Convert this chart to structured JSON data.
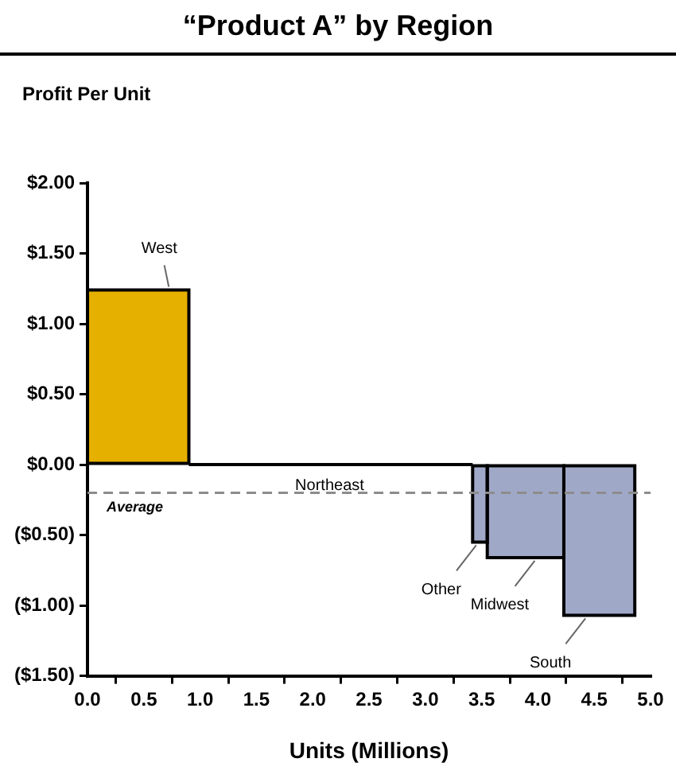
{
  "chart_data": {
    "type": "histogram",
    "title": "“Product A” by Region",
    "ylabel": "Profit Per Unit",
    "xlabel": "Units (Millions)",
    "bins": [
      0,
      0.9,
      3.42,
      3.55,
      4.23,
      4.86
    ],
    "values": [
      1.24,
      0,
      -0.55,
      -0.66,
      -1.07
    ],
    "colors": [
      "#e6b000",
      "#a0a8c8",
      "#a0a8c8",
      "#a0a8c8",
      "#a0a8c8"
    ],
    "xlim": [
      0,
      5
    ],
    "xticks": [
      {
        "value": 0,
        "label": "0.0"
      },
      {
        "value": 0.5,
        "label": "0.5"
      },
      {
        "value": 1,
        "label": "1.0"
      },
      {
        "value": 1.5,
        "label": "1.5"
      },
      {
        "value": 2,
        "label": "2.0"
      },
      {
        "value": 2.5,
        "label": "2.5"
      },
      {
        "value": 3,
        "label": "3.0"
      },
      {
        "value": 3.5,
        "label": "3.5"
      },
      {
        "value": 4,
        "label": "4.0"
      },
      {
        "value": 4.5,
        "label": "4.5"
      },
      {
        "value": 5,
        "label": "5.0"
      }
    ],
    "ylim": [
      -1.5,
      2
    ],
    "yticks": [
      {
        "value": -1.5,
        "label": "($1.50)"
      },
      {
        "value": -1,
        "label": "($1.00)"
      },
      {
        "value": -0.5,
        "label": "($0.50)"
      },
      {
        "value": 0,
        "label": "$0.00"
      },
      {
        "value": 0.5,
        "label": "$0.50"
      },
      {
        "value": 1,
        "label": "$1.00"
      },
      {
        "value": 1.5,
        "label": "$1.50"
      },
      {
        "value": 2,
        "label": "$2.00"
      }
    ],
    "ref_lines": [
      {
        "axis": "y",
        "value": -0.2,
        "label": "Average",
        "color": "#8c8c8c",
        "line_style": "dashed"
      }
    ],
    "annotations": [
      {
        "text": "West",
        "x": 0.75,
        "y": 1.24
      },
      {
        "text": "Northeast",
        "x": 2.15,
        "y": 0
      },
      {
        "text": "Other",
        "x": 3.48,
        "y": -0.55
      },
      {
        "text": "Midwest",
        "x": 4.0,
        "y": -0.66
      },
      {
        "text": "South",
        "x": 4.45,
        "y": -1.07
      }
    ],
    "grid": false,
    "legend": false
  }
}
